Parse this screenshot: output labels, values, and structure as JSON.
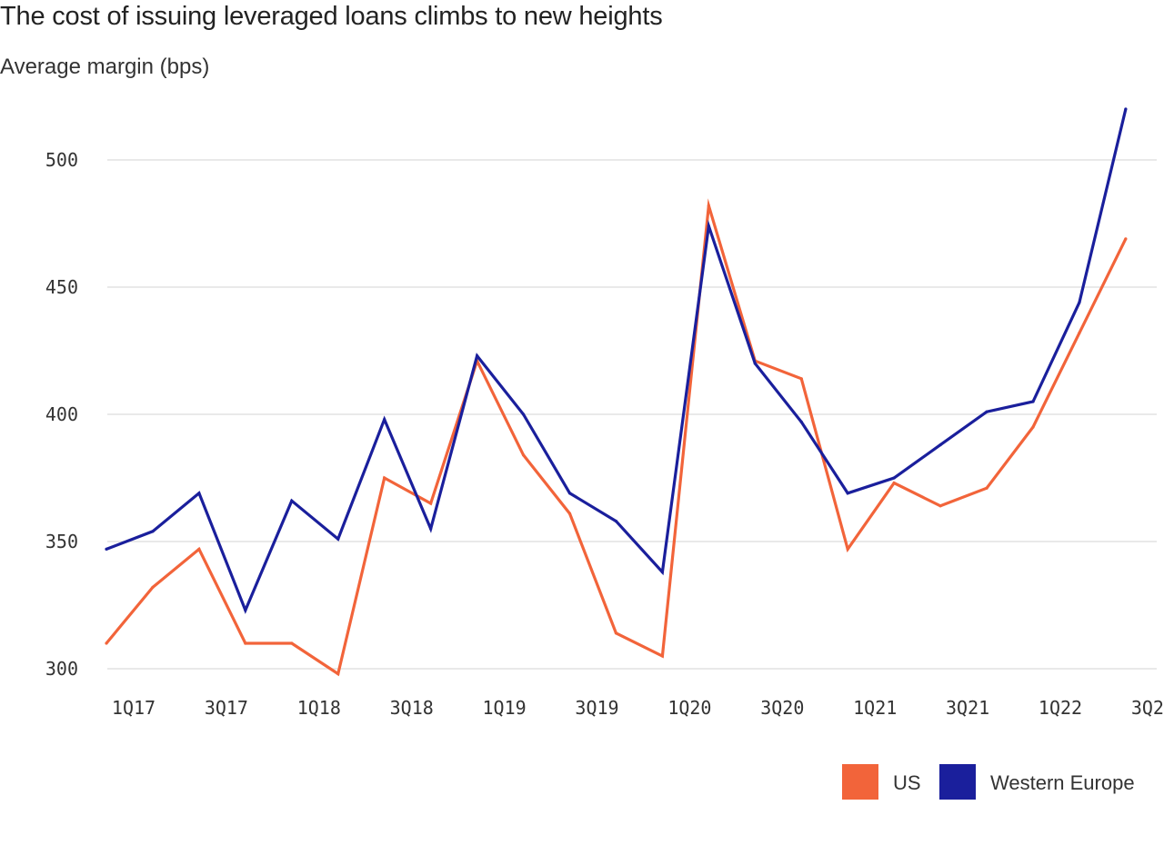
{
  "chart_data": {
    "type": "line",
    "title": "The cost of issuing leveraged loans climbs to new heights",
    "ylabel": "Average margin (bps)",
    "xlabel": "",
    "ylim": [
      295,
      525
    ],
    "yticks": [
      300,
      350,
      400,
      450,
      500
    ],
    "grid": true,
    "legend_position": "bottom-right",
    "categories": [
      "1Q17",
      "2Q17",
      "3Q17",
      "4Q17",
      "1Q18",
      "2Q18",
      "3Q18",
      "4Q18",
      "1Q19",
      "2Q19",
      "3Q19",
      "4Q19",
      "1Q20",
      "2Q20",
      "3Q20",
      "4Q20",
      "1Q21",
      "2Q21",
      "3Q21",
      "4Q21",
      "1Q22",
      "2Q22",
      "3Q22"
    ],
    "xtick_labels": [
      "1Q17",
      "3Q17",
      "1Q18",
      "3Q18",
      "1Q19",
      "3Q19",
      "1Q20",
      "3Q20",
      "1Q21",
      "3Q21",
      "1Q22",
      "3Q22"
    ],
    "series": [
      {
        "name": "US",
        "color": "#f2643a",
        "values": [
          310,
          332,
          347,
          310,
          310,
          298,
          375,
          365,
          421,
          384,
          361,
          314,
          305,
          482,
          421,
          414,
          347,
          373,
          364,
          371,
          395,
          432,
          469
        ]
      },
      {
        "name": "Western Europe",
        "color": "#1a1f9c",
        "values": [
          347,
          354,
          369,
          323,
          366,
          351,
          398,
          355,
          423,
          400,
          369,
          358,
          338,
          474,
          420,
          397,
          369,
          375,
          388,
          401,
          405,
          444,
          520
        ]
      }
    ]
  }
}
